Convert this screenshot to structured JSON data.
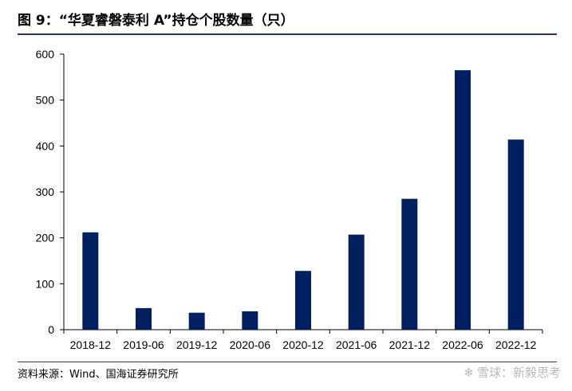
{
  "header": {
    "title": "图 9：“华夏睿磐泰利 A”持仓个股数量（只）"
  },
  "footer": {
    "source": "资料来源：Wind、国海证券研究所"
  },
  "watermark": {
    "text": "雪球：新毅思考",
    "icon": "snowball-icon"
  },
  "chart_data": {
    "type": "bar",
    "title": "“华夏睿磐泰利 A”持仓个股数量（只）",
    "categories": [
      "2018-12",
      "2019-06",
      "2019-12",
      "2020-06",
      "2020-12",
      "2021-06",
      "2021-12",
      "2022-06",
      "2022-12"
    ],
    "values": [
      212,
      47,
      37,
      40,
      128,
      207,
      285,
      565,
      414
    ],
    "ylim": [
      0,
      600
    ],
    "yticks": [
      0,
      100,
      200,
      300,
      400,
      500,
      600
    ],
    "grid": false,
    "bar_color": "#002060"
  }
}
